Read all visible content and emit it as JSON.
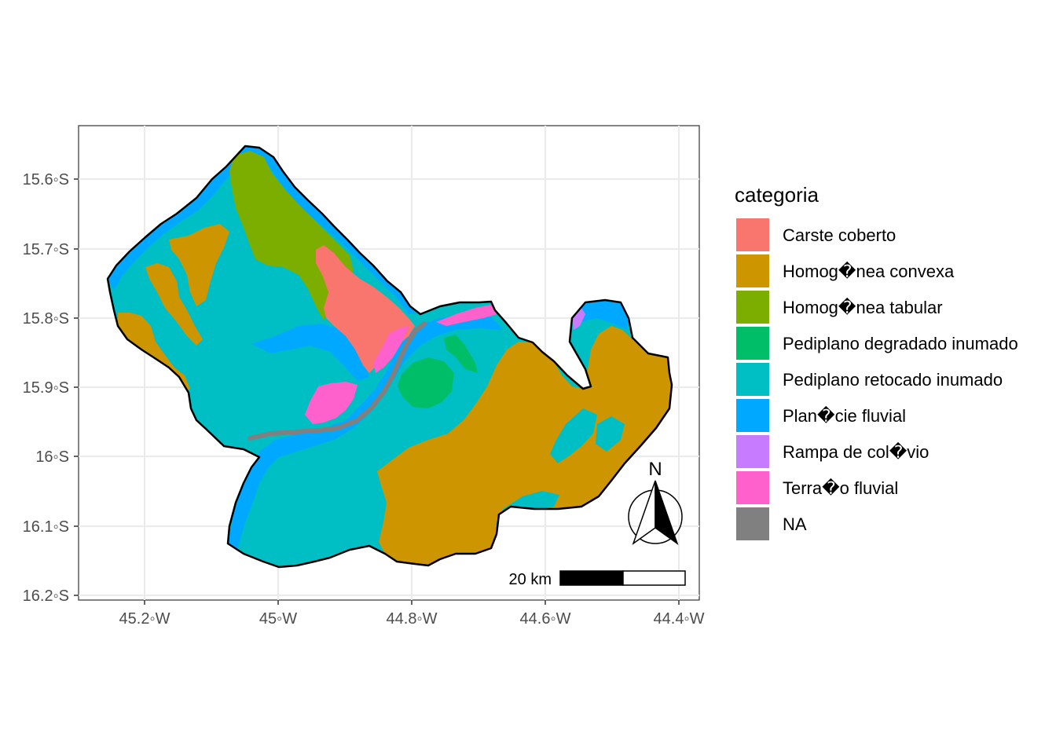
{
  "map": {
    "x_ticks": [
      "45.2◦W",
      "45◦W",
      "44.8◦W",
      "44.6◦W",
      "44.4◦W"
    ],
    "y_ticks": [
      "15.6◦S",
      "15.7◦S",
      "15.8◦S",
      "15.9◦S",
      "16◦S",
      "16.1◦S",
      "16.2◦S"
    ],
    "x_tick_values": [
      -45.2,
      -45.0,
      -44.8,
      -44.6,
      -44.4
    ],
    "y_tick_values": [
      -15.6,
      -15.7,
      -15.8,
      -15.9,
      -16.0,
      -16.1,
      -16.2
    ],
    "grid": true,
    "scale_bar": {
      "label": "20 km"
    },
    "north_arrow": {
      "label": "N"
    }
  },
  "legend": {
    "title": "categoria",
    "placement": "right",
    "items": [
      {
        "label": "Carste coberto",
        "color": "#F8766D"
      },
      {
        "label": "Homog�nea convexa",
        "color": "#CD9600"
      },
      {
        "label": "Homog�nea tabular",
        "color": "#7CAE00"
      },
      {
        "label": "Pediplano degradado inumado",
        "color": "#00BE67"
      },
      {
        "label": "Pediplano retocado inumado",
        "color": "#00BFC4"
      },
      {
        "label": "Plan�cie fluvial",
        "color": "#00A9FF"
      },
      {
        "label": "Rampa de col�vio",
        "color": "#C77CFF"
      },
      {
        "label": "Terra�o fluvial",
        "color": "#FF61CC"
      },
      {
        "label": "NA",
        "color": "#808080"
      }
    ]
  }
}
